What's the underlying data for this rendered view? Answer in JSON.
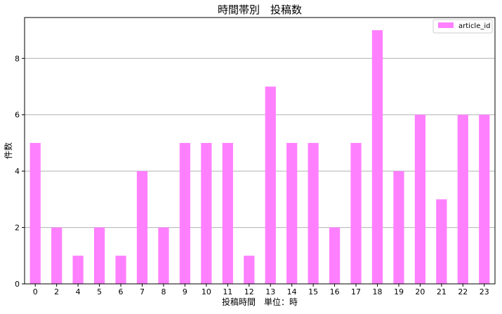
{
  "chart_data": {
    "type": "bar",
    "title": "時間帯別　投稿数",
    "xlabel": "投稿時間　単位：時",
    "ylabel": "件数",
    "categories": [
      "0",
      "2",
      "4",
      "5",
      "6",
      "7",
      "8",
      "9",
      "10",
      "11",
      "12",
      "13",
      "14",
      "15",
      "16",
      "17",
      "18",
      "19",
      "20",
      "21",
      "22",
      "23"
    ],
    "series": [
      {
        "name": "article_id",
        "values": [
          5,
          2,
          1,
          2,
          1,
          4,
          2,
          5,
          5,
          5,
          1,
          7,
          5,
          5,
          2,
          5,
          9,
          4,
          6,
          3,
          6,
          6
        ]
      }
    ],
    "ylim": [
      0,
      9.45
    ],
    "yticks": [
      0,
      2,
      4,
      6,
      8
    ],
    "grid": "horizontal",
    "legend_position": "top-right",
    "bar_color": "#ff80ff"
  }
}
